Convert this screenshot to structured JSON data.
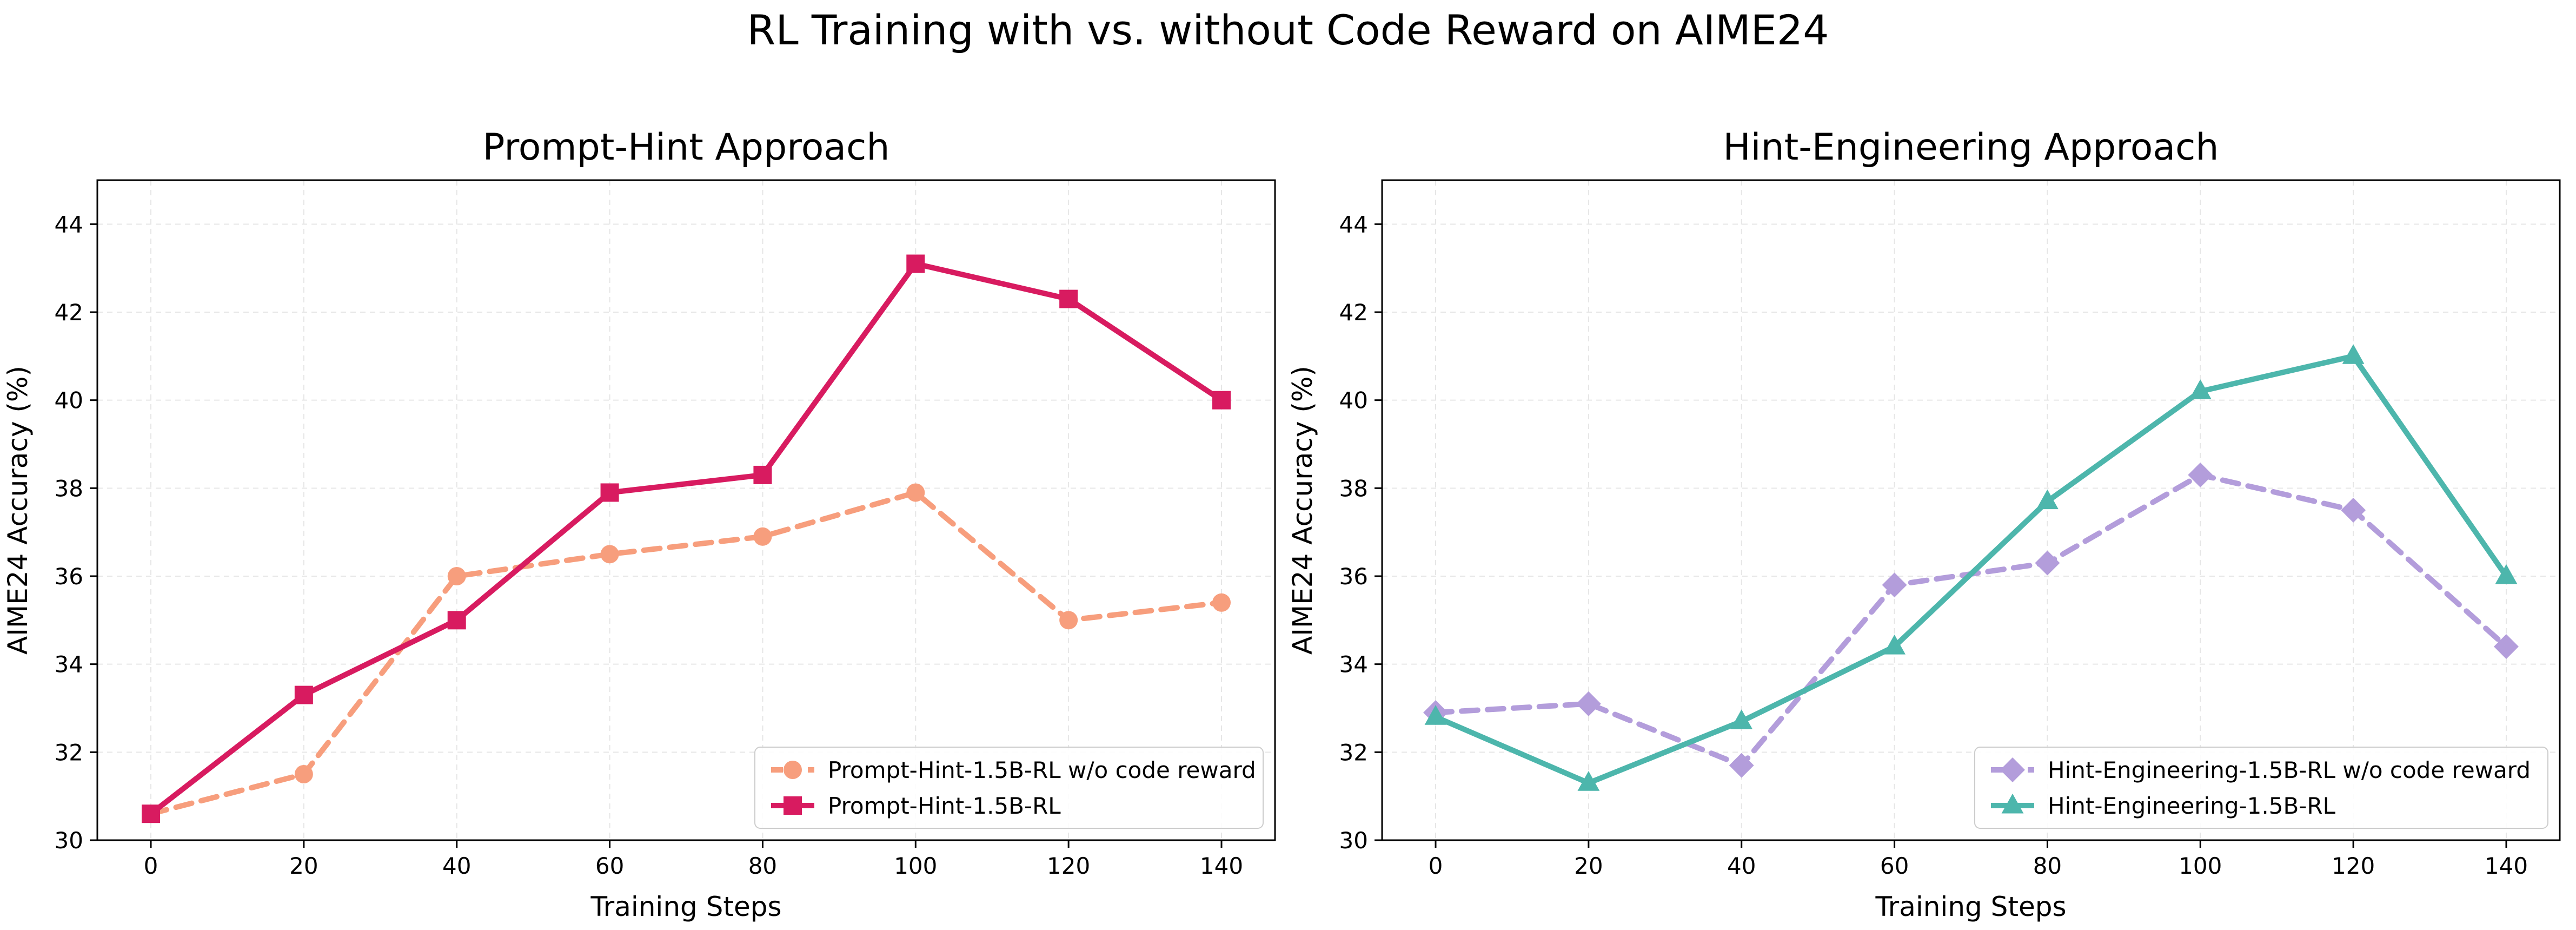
{
  "figure_title": "RL Training with vs. without Code Reward on AIME24",
  "chart_data": [
    {
      "type": "line",
      "title": "Prompt-Hint Approach",
      "xlabel": "Training Steps",
      "ylabel": "AIME24 Accuracy (%)",
      "x": [
        0,
        20,
        40,
        60,
        80,
        100,
        120,
        140
      ],
      "xlim": [
        -7,
        147
      ],
      "ylim": [
        30,
        45
      ],
      "xticks": [
        0,
        20,
        40,
        60,
        80,
        100,
        120,
        140
      ],
      "yticks": [
        30,
        32,
        34,
        36,
        38,
        40,
        42,
        44
      ],
      "grid": true,
      "legend": "lower right",
      "series": [
        {
          "name": "Prompt-Hint-1.5B-RL w/o code reward",
          "values": [
            30.6,
            31.5,
            36.0,
            36.5,
            36.9,
            37.9,
            35.0,
            35.4
          ],
          "color": "#F79E7D",
          "dashed": true,
          "marker": "circle"
        },
        {
          "name": "Prompt-Hint-1.5B-RL",
          "values": [
            30.6,
            33.3,
            35.0,
            37.9,
            38.3,
            43.1,
            42.3,
            40.0
          ],
          "color": "#D81B60",
          "dashed": false,
          "marker": "square"
        }
      ]
    },
    {
      "type": "line",
      "title": "Hint-Engineering Approach",
      "xlabel": "Training Steps",
      "ylabel": "AIME24 Accuracy (%)",
      "x": [
        0,
        20,
        40,
        60,
        80,
        100,
        120,
        140
      ],
      "xlim": [
        -7,
        147
      ],
      "ylim": [
        30,
        45
      ],
      "xticks": [
        0,
        20,
        40,
        60,
        80,
        100,
        120,
        140
      ],
      "yticks": [
        30,
        32,
        34,
        36,
        38,
        40,
        42,
        44
      ],
      "grid": true,
      "legend": "lower right",
      "series": [
        {
          "name": "Hint-Engineering-1.5B-RL w/o code reward",
          "values": [
            32.9,
            33.1,
            31.7,
            35.8,
            36.3,
            38.3,
            37.5,
            34.4
          ],
          "color": "#B39DDB",
          "dashed": true,
          "marker": "diamond"
        },
        {
          "name": "Hint-Engineering-1.5B-RL",
          "values": [
            32.8,
            31.3,
            32.7,
            34.4,
            37.7,
            40.2,
            41.0,
            36.0
          ],
          "color": "#4DB6AC",
          "dashed": false,
          "marker": "triangle"
        }
      ]
    }
  ]
}
